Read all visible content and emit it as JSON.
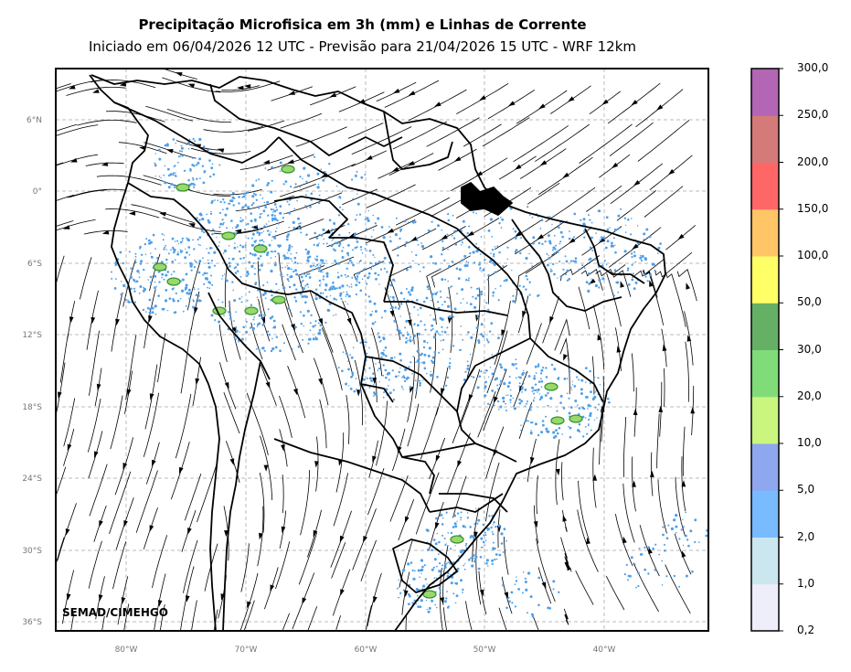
{
  "title": "Precipitação Microfisica em 3h (mm) e Linhas de Corrente",
  "subtitle": "Iniciado em 06/04/2026 12 UTC - Previsão para 21/04/2026 15 UTC - WRF 12km",
  "credit": "SEMAD/CIMEHGO",
  "lat_ticks": [
    "6°N",
    "0°",
    "6°S",
    "12°S",
    "18°S",
    "24°S",
    "30°S",
    "36°S"
  ],
  "lon_ticks": [
    "80°W",
    "70°W",
    "60°W",
    "50°W",
    "40°W"
  ],
  "colorbar": {
    "labels": [
      "0,2",
      "1,0",
      "2,0",
      "5,0",
      "10,0",
      "20,0",
      "30,0",
      "50,0",
      "100,0",
      "150,0",
      "200,0",
      "250,0",
      "300,0"
    ],
    "colors": [
      "#eeeefa",
      "#cce6f0",
      "#78bbff",
      "#8ea7ee",
      "#caf57e",
      "#80dc78",
      "#66b066",
      "#ffff66",
      "#ffc566",
      "#ff6666",
      "#d47a78",
      "#b266b4"
    ]
  },
  "colors": {
    "coastline": "#000000",
    "gridline": "#bbbbbb",
    "streamline": "#000000",
    "light_rain": "#4f9fe8",
    "moderate_rain": "#9ad86b",
    "heavy_rain": "#2f8f2f"
  }
}
